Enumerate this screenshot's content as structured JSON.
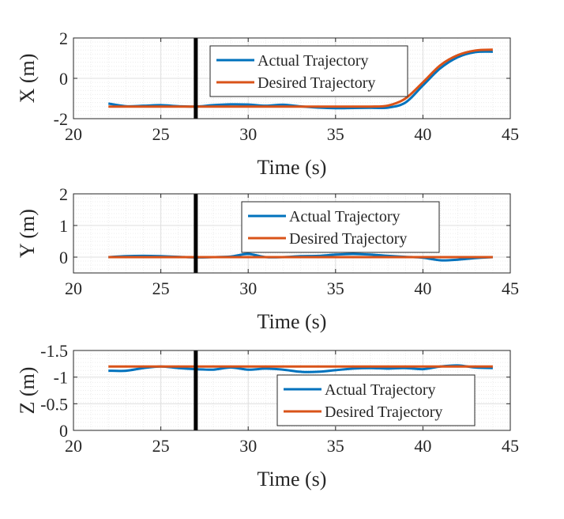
{
  "figure": {
    "colors": {
      "actual": "#0072bd",
      "desired": "#d95319",
      "marker": "#000000",
      "grid_major": "#dfdfdf",
      "grid_minor": "#ececec",
      "axes": "#262626"
    }
  },
  "chart_data": [
    {
      "type": "line",
      "ylabel": "X (m)",
      "xlabel": "Time (s)",
      "xlim": [
        20,
        45
      ],
      "ylim": [
        -2,
        2
      ],
      "y_reversed": false,
      "xticks": [
        20,
        25,
        30,
        35,
        40,
        45
      ],
      "yticks": [
        -2,
        0,
        2
      ],
      "ytick_labels": [
        "-2",
        "0",
        "2"
      ],
      "grid": true,
      "minor_grid": true,
      "vertical_marker_x": 27,
      "legend": {
        "location": "top-right",
        "entries": [
          "Actual Trajectory",
          "Desired Trajectory"
        ]
      },
      "series": [
        {
          "name": "Actual Trajectory",
          "x": [
            22,
            23,
            24,
            25,
            26,
            27,
            28,
            29,
            30,
            31,
            32,
            33,
            34,
            35,
            36,
            37,
            38,
            39,
            40,
            41,
            42,
            43,
            44
          ],
          "y": [
            -1.25,
            -1.38,
            -1.36,
            -1.33,
            -1.38,
            -1.4,
            -1.33,
            -1.29,
            -1.3,
            -1.36,
            -1.31,
            -1.39,
            -1.45,
            -1.48,
            -1.47,
            -1.46,
            -1.45,
            -1.2,
            -0.35,
            0.5,
            1.05,
            1.3,
            1.32
          ]
        },
        {
          "name": "Desired Trajectory",
          "x": [
            22,
            23,
            24,
            25,
            26,
            27,
            28,
            29,
            30,
            31,
            32,
            33,
            34,
            35,
            36,
            37,
            38,
            39,
            40,
            41,
            42,
            43,
            44
          ],
          "y": [
            -1.4,
            -1.4,
            -1.4,
            -1.4,
            -1.4,
            -1.4,
            -1.4,
            -1.4,
            -1.4,
            -1.4,
            -1.4,
            -1.4,
            -1.4,
            -1.4,
            -1.4,
            -1.4,
            -1.35,
            -1.0,
            -0.2,
            0.65,
            1.15,
            1.38,
            1.42
          ]
        }
      ]
    },
    {
      "type": "line",
      "ylabel": "Y (m)",
      "xlabel": "Time (s)",
      "xlim": [
        20,
        45
      ],
      "ylim": [
        -0.5,
        2
      ],
      "y_reversed": false,
      "xticks": [
        20,
        25,
        30,
        35,
        40,
        45
      ],
      "yticks": [
        0,
        1,
        2
      ],
      "ytick_labels": [
        "0",
        "1",
        "2"
      ],
      "grid": true,
      "minor_grid": true,
      "vertical_marker_x": 27,
      "legend": {
        "location": "top-right",
        "entries": [
          "Actual Trajectory",
          "Desired Trajectory"
        ]
      },
      "series": [
        {
          "name": "Actual Trajectory",
          "x": [
            22,
            23,
            24,
            25,
            26,
            27,
            28,
            29,
            30,
            31,
            32,
            33,
            34,
            35,
            36,
            37,
            38,
            39,
            40,
            41,
            42,
            43,
            44
          ],
          "y": [
            0.0,
            0.03,
            0.04,
            0.03,
            0.01,
            -0.01,
            0.0,
            0.02,
            0.1,
            0.0,
            0.0,
            0.03,
            0.04,
            0.08,
            0.1,
            0.08,
            0.04,
            0.01,
            -0.02,
            -0.1,
            -0.08,
            -0.03,
            0.0
          ]
        },
        {
          "name": "Desired Trajectory",
          "x": [
            22,
            44
          ],
          "y": [
            0,
            0
          ]
        }
      ]
    },
    {
      "type": "line",
      "ylabel": "Z (m)",
      "xlabel": "Time (s)",
      "xlim": [
        20,
        45
      ],
      "ylim": [
        -1.5,
        0
      ],
      "y_reversed": true,
      "xticks": [
        20,
        25,
        30,
        35,
        40,
        45
      ],
      "yticks": [
        -1.5,
        -1,
        -0.5,
        0
      ],
      "ytick_labels": [
        "-1.5",
        "-1",
        "-0.5",
        "0"
      ],
      "grid": true,
      "minor_grid": true,
      "vertical_marker_x": 27,
      "legend": {
        "location": "bottom-right",
        "entries": [
          "Actual Trajectory",
          "Desired Trajectory"
        ]
      },
      "series": [
        {
          "name": "Actual Trajectory",
          "x": [
            22,
            23,
            24,
            25,
            26,
            27,
            28,
            29,
            30,
            31,
            32,
            33,
            34,
            35,
            36,
            37,
            38,
            39,
            40,
            41,
            42,
            43,
            44
          ],
          "y": [
            -1.12,
            -1.12,
            -1.17,
            -1.2,
            -1.17,
            -1.15,
            -1.14,
            -1.18,
            -1.14,
            -1.16,
            -1.14,
            -1.1,
            -1.1,
            -1.13,
            -1.16,
            -1.17,
            -1.16,
            -1.17,
            -1.15,
            -1.2,
            -1.22,
            -1.18,
            -1.17
          ]
        },
        {
          "name": "Desired Trajectory",
          "x": [
            22,
            44
          ],
          "y": [
            -1.2,
            -1.2
          ]
        }
      ]
    }
  ]
}
